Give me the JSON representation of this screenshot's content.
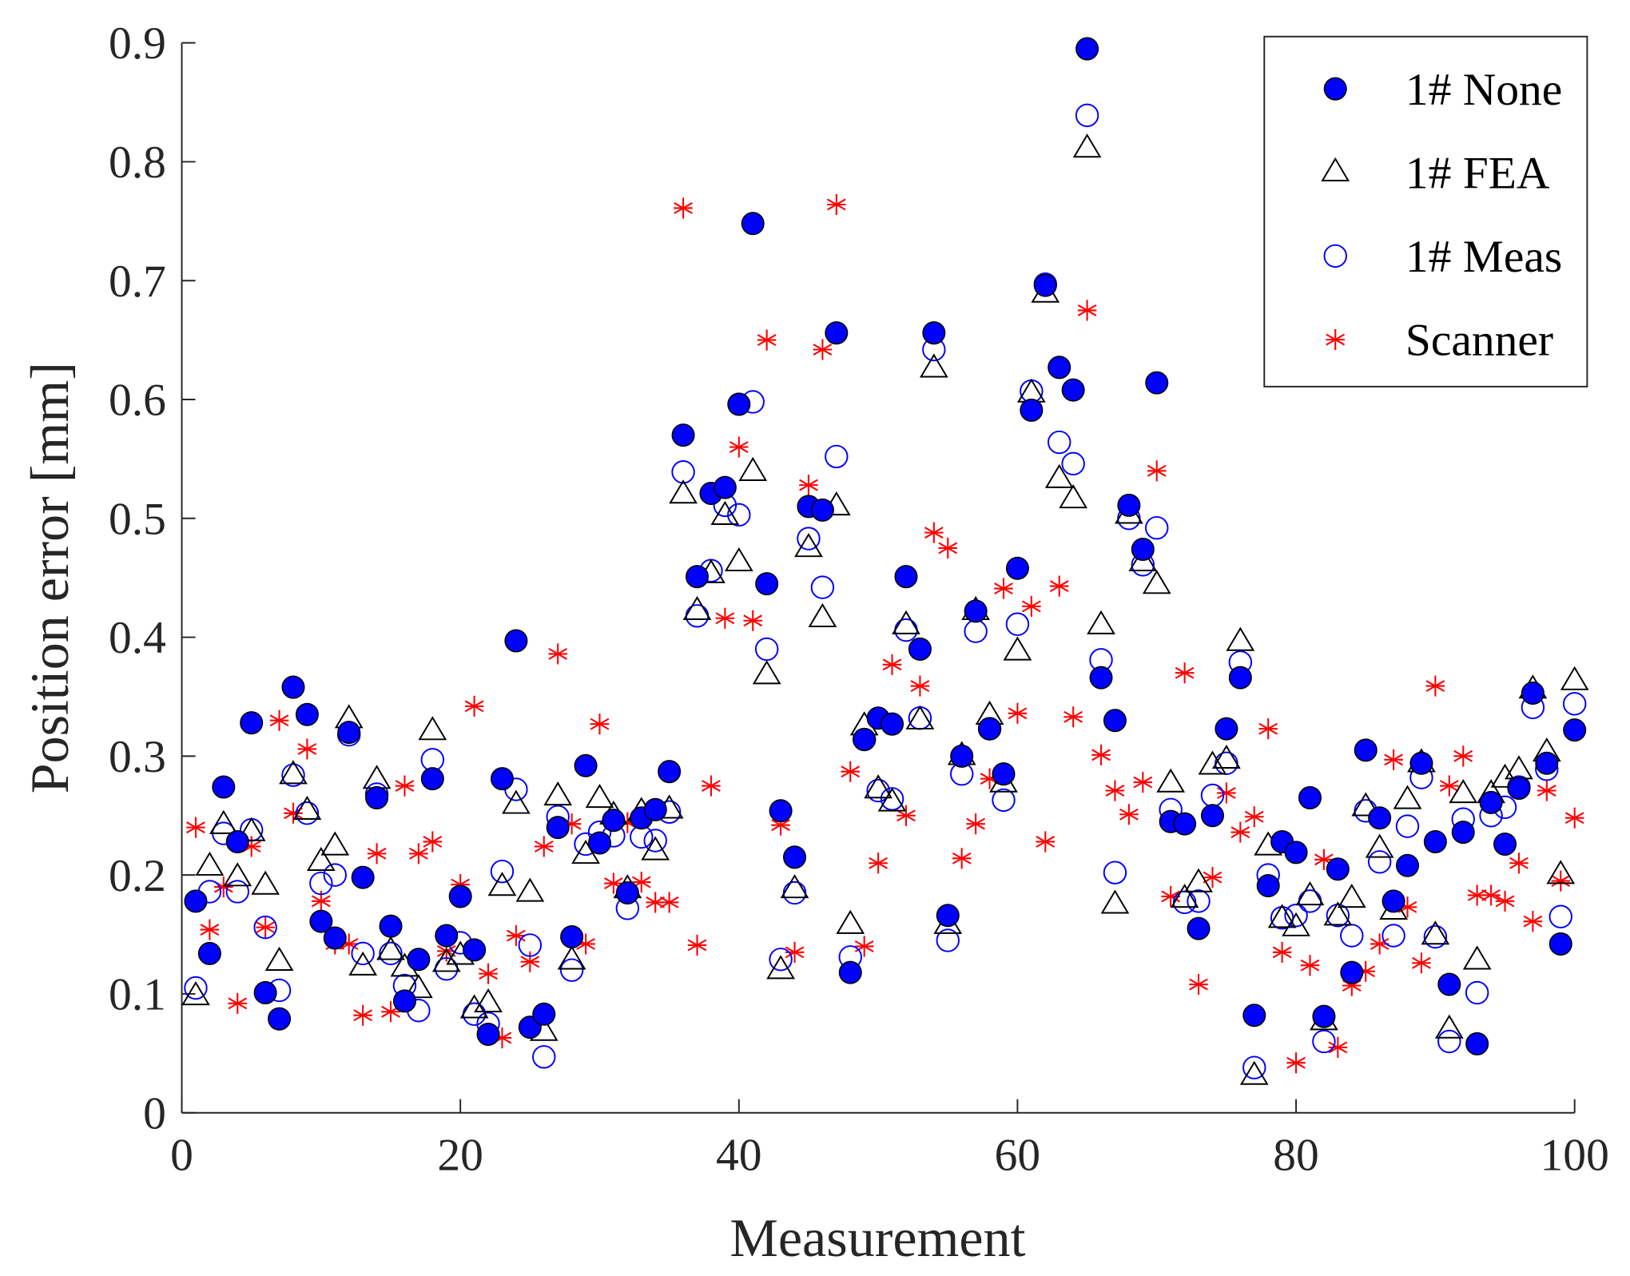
{
  "chart_data": {
    "type": "scatter",
    "title": "",
    "xlabel": "Measurement",
    "ylabel": "Position error [mm]",
    "xlim": [
      0,
      100
    ],
    "ylim": [
      0,
      0.9
    ],
    "xticks": [
      "0",
      "20",
      "40",
      "60",
      "80",
      "100"
    ],
    "yticks": [
      "0",
      "0.1",
      "0.2",
      "0.3",
      "0.4",
      "0.5",
      "0.6",
      "0.7",
      "0.8",
      "0.9"
    ],
    "grid": false,
    "legend_position": "top-right",
    "x": [
      1,
      2,
      3,
      4,
      5,
      6,
      7,
      8,
      9,
      10,
      11,
      12,
      13,
      14,
      15,
      16,
      17,
      18,
      19,
      20,
      21,
      22,
      23,
      24,
      25,
      26,
      27,
      28,
      29,
      30,
      31,
      32,
      33,
      34,
      35,
      36,
      37,
      38,
      39,
      40,
      41,
      42,
      43,
      44,
      45,
      46,
      47,
      48,
      49,
      50,
      51,
      52,
      53,
      54,
      55,
      56,
      57,
      58,
      59,
      60,
      61,
      62,
      63,
      64,
      65,
      66,
      67,
      68,
      69,
      70,
      71,
      72,
      73,
      74,
      75,
      76,
      77,
      78,
      79,
      80,
      81,
      82,
      83,
      84,
      85,
      86,
      87,
      88,
      89,
      90,
      91,
      92,
      93,
      94,
      95,
      96,
      97,
      98,
      99,
      100
    ],
    "series": [
      {
        "name": "1# None",
        "marker": "filled-circle",
        "color": "#0000ff",
        "values": [
          0.178,
          0.134,
          0.274,
          0.228,
          0.328,
          0.101,
          0.079,
          0.358,
          0.335,
          0.161,
          0.147,
          0.32,
          0.198,
          0.265,
          0.157,
          0.094,
          0.129,
          0.281,
          0.149,
          0.182,
          0.137,
          0.066,
          0.281,
          0.397,
          0.072,
          0.083,
          0.24,
          0.148,
          0.292,
          0.227,
          0.246,
          0.185,
          0.248,
          0.255,
          0.287,
          0.57,
          0.451,
          0.521,
          0.526,
          0.596,
          0.748,
          0.445,
          0.254,
          0.215,
          0.51,
          0.507,
          0.656,
          0.118,
          0.314,
          0.332,
          0.327,
          0.451,
          0.39,
          0.656,
          0.166,
          0.3,
          0.422,
          0.323,
          0.285,
          0.458,
          0.591,
          0.696,
          0.627,
          0.608,
          0.895,
          0.366,
          0.33,
          0.511,
          0.474,
          0.614,
          0.245,
          0.243,
          0.155,
          0.25,
          0.323,
          0.366,
          0.082,
          0.191,
          0.228,
          0.219,
          0.265,
          0.081,
          0.205,
          0.118,
          0.305,
          0.248,
          0.178,
          0.208,
          0.294,
          0.228,
          0.108,
          0.236,
          0.058,
          0.261,
          0.226,
          0.273,
          0.353,
          0.294,
          0.142,
          0.322
        ]
      },
      {
        "name": "1# FEA",
        "marker": "triangle",
        "color": "#000000",
        "values": [
          0.098,
          0.207,
          0.242,
          0.198,
          0.236,
          0.191,
          0.127,
          0.284,
          0.254,
          0.211,
          0.224,
          0.331,
          0.123,
          0.28,
          0.136,
          0.122,
          0.104,
          0.321,
          0.126,
          0.132,
          0.087,
          0.092,
          0.19,
          0.259,
          0.185,
          0.068,
          0.266,
          0.128,
          0.217,
          0.264,
          0.25,
          0.188,
          0.253,
          0.22,
          0.255,
          0.52,
          0.422,
          0.453,
          0.502,
          0.463,
          0.539,
          0.368,
          0.12,
          0.188,
          0.475,
          0.416,
          0.51,
          0.158,
          0.325,
          0.272,
          0.261,
          0.41,
          0.33,
          0.626,
          0.158,
          0.3,
          0.422,
          0.334,
          0.277,
          0.388,
          0.605,
          0.689,
          0.533,
          0.516,
          0.811,
          0.41,
          0.175,
          0.503,
          0.463,
          0.444,
          0.277,
          0.18,
          0.193,
          0.292,
          0.297,
          0.396,
          0.031,
          0.224,
          0.163,
          0.156,
          0.182,
          0.077,
          0.165,
          0.18,
          0.257,
          0.222,
          0.17,
          0.263,
          0.294,
          0.149,
          0.07,
          0.268,
          0.128,
          0.268,
          0.281,
          0.288,
          0.356,
          0.303,
          0.2,
          0.363
        ]
      },
      {
        "name": "1# Meas",
        "marker": "open-circle",
        "color": "#0000ff",
        "values": [
          0.105,
          0.186,
          0.235,
          0.186,
          0.238,
          0.156,
          0.103,
          0.284,
          0.252,
          0.193,
          0.2,
          0.318,
          0.134,
          0.268,
          0.134,
          0.107,
          0.086,
          0.297,
          0.121,
          0.143,
          0.083,
          0.075,
          0.203,
          0.272,
          0.141,
          0.047,
          0.249,
          0.12,
          0.226,
          0.236,
          0.233,
          0.172,
          0.232,
          0.229,
          0.253,
          0.539,
          0.418,
          0.456,
          0.511,
          0.503,
          0.598,
          0.39,
          0.129,
          0.185,
          0.483,
          0.442,
          0.552,
          0.131,
          0.314,
          0.271,
          0.264,
          0.406,
          0.332,
          0.642,
          0.145,
          0.285,
          0.405,
          0.323,
          0.263,
          0.411,
          0.607,
          0.697,
          0.564,
          0.546,
          0.839,
          0.381,
          0.202,
          0.5,
          0.461,
          0.492,
          0.255,
          0.177,
          0.178,
          0.267,
          0.294,
          0.379,
          0.038,
          0.2,
          0.164,
          0.166,
          0.178,
          0.06,
          0.166,
          0.149,
          0.254,
          0.211,
          0.149,
          0.241,
          0.282,
          0.148,
          0.06,
          0.247,
          0.101,
          0.25,
          0.257,
          0.274,
          0.341,
          0.289,
          0.165,
          0.344
        ]
      },
      {
        "name": "Scanner",
        "marker": "asterisk",
        "color": "#ff0000",
        "values": [
          0.24,
          0.154,
          0.19,
          0.092,
          0.224,
          0.156,
          0.33,
          0.252,
          0.306,
          0.178,
          0.142,
          0.142,
          0.082,
          0.218,
          0.085,
          0.275,
          0.218,
          0.228,
          0.136,
          0.192,
          0.342,
          0.117,
          0.063,
          0.149,
          0.127,
          0.224,
          0.386,
          0.243,
          0.142,
          0.327,
          0.193,
          0.244,
          0.194,
          0.177,
          0.177,
          0.761,
          0.141,
          0.275,
          0.416,
          0.56,
          0.414,
          0.65,
          0.242,
          0.135,
          0.528,
          0.642,
          0.764,
          0.287,
          0.14,
          0.21,
          0.377,
          0.25,
          0.359,
          0.488,
          0.475,
          0.214,
          0.243,
          0.281,
          0.441,
          0.336,
          0.426,
          0.228,
          0.443,
          0.333,
          0.675,
          0.301,
          0.271,
          0.251,
          0.278,
          0.54,
          0.182,
          0.37,
          0.108,
          0.198,
          0.269,
          0.236,
          0.249,
          0.323,
          0.135,
          0.042,
          0.124,
          0.213,
          0.055,
          0.107,
          0.119,
          0.142,
          0.297,
          0.173,
          0.126,
          0.359,
          0.275,
          0.3,
          0.183,
          0.183,
          0.178,
          0.21,
          0.161,
          0.271,
          0.195,
          0.248
        ]
      }
    ]
  }
}
